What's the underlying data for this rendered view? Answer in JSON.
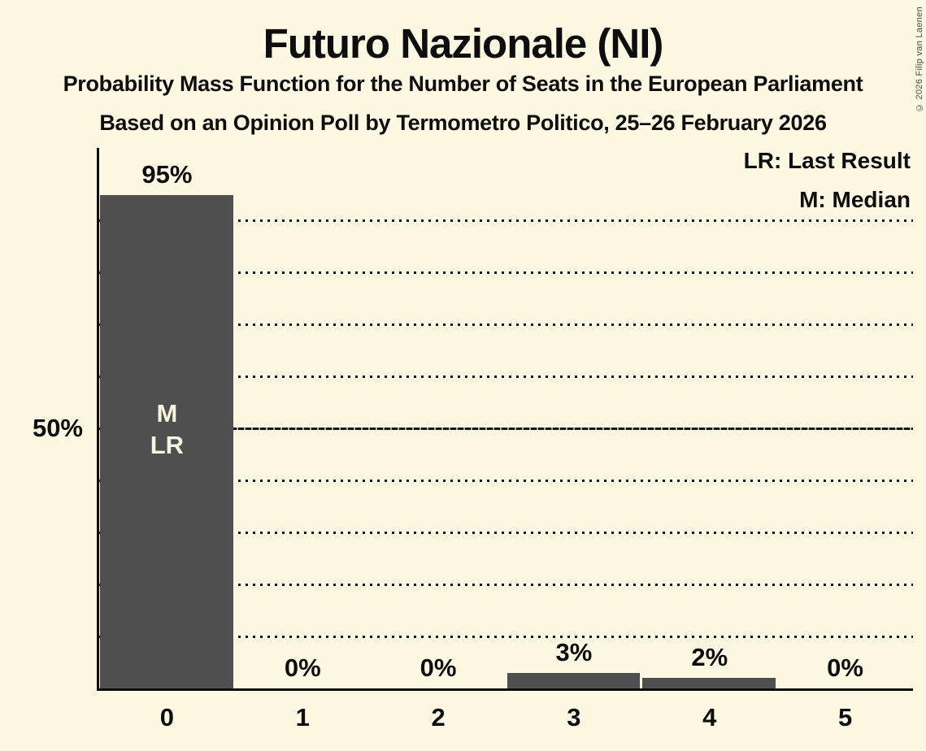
{
  "header": {
    "title": "Futuro Nazionale (NI)",
    "subtitle1": "Probability Mass Function for the Number of Seats in the European Parliament",
    "subtitle2": "Based on an Opinion Poll by Termometro Politico, 25–26 February 2026"
  },
  "legend": {
    "lr": "LR: Last Result",
    "m": "M: Median"
  },
  "copyright": "© 2026 Filip van Laenen",
  "colors": {
    "background": "#FCF8E2",
    "bar": "#4F4F4F",
    "text": "#0D0D0D",
    "bar_text": "#F8F4DE",
    "gridline": "#161616"
  },
  "chart_data": {
    "type": "bar",
    "title": "Futuro Nazionale (NI)",
    "xlabel": "",
    "ylabel": "",
    "categories": [
      "0",
      "1",
      "2",
      "3",
      "4",
      "5"
    ],
    "values": [
      95,
      0,
      0,
      3,
      2,
      0
    ],
    "bar_labels": [
      "95%",
      "0%",
      "0%",
      "3%",
      "2%",
      "0%"
    ],
    "ylim": [
      0,
      104
    ],
    "grid": "horizontal dotted",
    "gridlines_pct": [
      10,
      20,
      30,
      40,
      50,
      60,
      70,
      80,
      90
    ],
    "solid_gridline_pct": 50,
    "y_reference_label": {
      "pct": 50,
      "text": "50%"
    },
    "annotations": [
      {
        "category_index": 0,
        "lines": [
          "M",
          "LR"
        ],
        "center_pct": 50
      }
    ],
    "legend_position": "top-right"
  }
}
